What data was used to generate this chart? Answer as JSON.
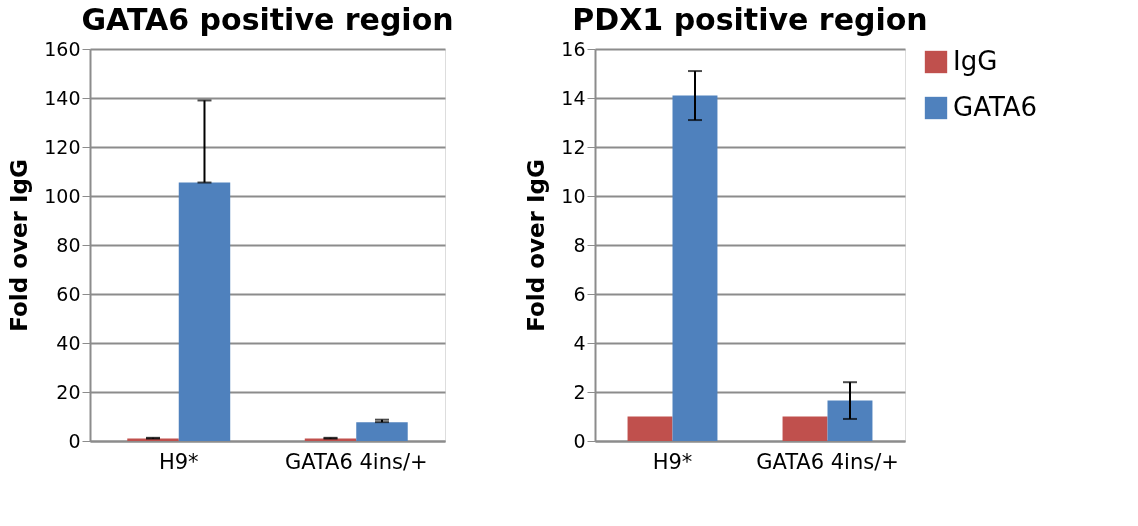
{
  "chart_data": [
    {
      "type": "bar",
      "title": "GATA6 positive region",
      "ylabel": "Fold over IgG",
      "categories": [
        "H9*",
        "GATA6 4ins/+"
      ],
      "ylim": [
        0,
        160
      ],
      "yticks": [
        0,
        20,
        40,
        60,
        80,
        100,
        120,
        140,
        160
      ],
      "grid": "y",
      "legend": false,
      "series": [
        {
          "color": "#c0504d",
          "values": [
            1,
            1
          ],
          "errors": [
            [
              1,
              1.3
            ],
            [
              1,
              1.3
            ]
          ]
        },
        {
          "color": "#4f81bd",
          "values": [
            105.5,
            7.7
          ],
          "errors": [
            [
              105.5,
              139
            ],
            [
              7.7,
              8.7
            ]
          ]
        }
      ]
    },
    {
      "type": "bar",
      "title": "PDX1 positive region",
      "ylabel": "Fold over IgG",
      "categories": [
        "H9*",
        "GATA6 4ins/+"
      ],
      "ylim": [
        0,
        16
      ],
      "yticks": [
        0,
        2,
        4,
        6,
        8,
        10,
        12,
        14,
        16
      ],
      "grid": "y",
      "legend": "right",
      "series": [
        {
          "name": "IgG",
          "color": "#c0504d",
          "values": [
            1,
            1
          ]
        },
        {
          "name": "GATA6",
          "color": "#4f81bd",
          "values": [
            14.1,
            1.65
          ],
          "errors": [
            1.0,
            0.75
          ]
        }
      ]
    }
  ]
}
